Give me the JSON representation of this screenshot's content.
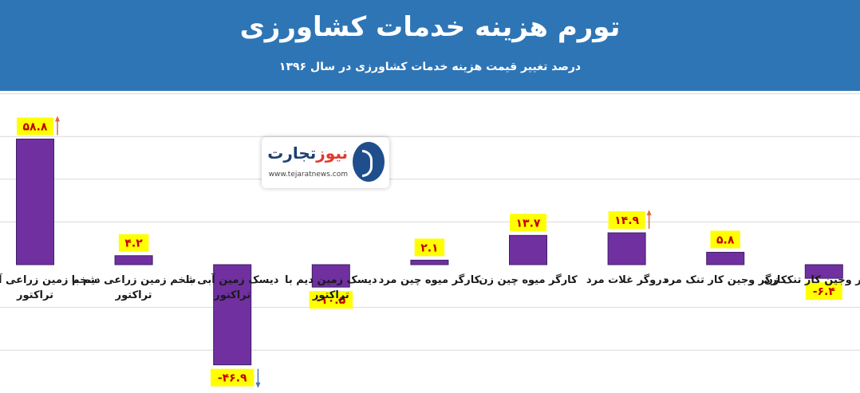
{
  "header": {
    "title": "تورم هزینه خدمات کشاورزی",
    "subtitle": "درصد تغییر قیمت هزینه خدمات کشاورزی در سال ۱۳۹۶",
    "background": "#2e75b6"
  },
  "logo": {
    "name_part1": "تجارت",
    "name_part2": "نیوز",
    "site": "www.tejaratnews.com"
  },
  "colors": {
    "bar_fill": "#7030a0",
    "label_bg": "#ffff00",
    "label_text": "#c00000",
    "arrow_up": "#e0683a",
    "arrow_down": "#4472c4",
    "grid": "#d9d9d9"
  },
  "chart_data": {
    "type": "bar",
    "title": "تورم هزینه خدمات کشاورزی",
    "subtitle": "درصد تغییر قیمت هزینه خدمات کشاورزی در سال ۱۳۹۶",
    "categories": [
      [
        "شخم زمین زراعی آبی با",
        "تراکتور"
      ],
      [
        "شخم زمین زراعی دیم با",
        "تراکتور"
      ],
      [
        "دیسک زمین آبی با",
        "تراکتور"
      ],
      [
        "دیسک زمین دیم با",
        "تراکتور"
      ],
      [
        "کارگر میوه چین مرد"
      ],
      [
        "کارگر میوه چین زن"
      ],
      [
        "دروگر غلات مرد"
      ],
      [
        "کارگر وجین کار تنک مرد"
      ],
      [
        "کارگر وجین کار تنک زن"
      ]
    ],
    "values": [
      58.8,
      4.2,
      -46.9,
      -10.5,
      2.1,
      13.7,
      14.9,
      5.8,
      -6.4
    ],
    "data_labels": [
      "۵۸.۸",
      "۴.۲",
      "-۴۶.۹",
      "-۱۰.۵",
      "۲.۱",
      "۱۳.۷",
      "۱۴.۹",
      "۵.۸",
      "-۶.۴"
    ],
    "highlight_arrows": [
      "up",
      null,
      "down",
      null,
      null,
      null,
      "up",
      null,
      null
    ],
    "ylim": [
      -50,
      80
    ],
    "grid": true,
    "legend": false,
    "xlabel": "",
    "ylabel": ""
  }
}
